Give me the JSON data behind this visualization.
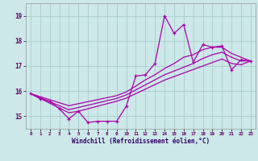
{
  "xlabel": "Windchill (Refroidissement éolien,°C)",
  "background_color": "#cce8e8",
  "grid_color": "#aacccc",
  "line_color": "#aa00aa",
  "x_values": [
    0,
    1,
    2,
    3,
    4,
    5,
    6,
    7,
    8,
    9,
    10,
    11,
    12,
    13,
    14,
    15,
    16,
    17,
    18,
    19,
    20,
    21,
    22,
    23
  ],
  "y_main": [
    15.9,
    15.7,
    15.6,
    15.3,
    14.9,
    15.2,
    14.75,
    14.8,
    14.8,
    14.8,
    15.4,
    16.6,
    16.65,
    17.1,
    19.0,
    18.3,
    18.65,
    17.15,
    17.85,
    17.75,
    17.8,
    16.85,
    17.25,
    17.2
  ],
  "y_upper": [
    15.9,
    15.78,
    15.66,
    15.54,
    15.42,
    15.5,
    15.58,
    15.66,
    15.74,
    15.82,
    15.97,
    16.2,
    16.45,
    16.65,
    16.9,
    17.1,
    17.35,
    17.45,
    17.65,
    17.75,
    17.75,
    17.5,
    17.35,
    17.2
  ],
  "y_mid": [
    15.9,
    15.74,
    15.58,
    15.42,
    15.26,
    15.35,
    15.44,
    15.53,
    15.62,
    15.71,
    15.85,
    16.05,
    16.25,
    16.45,
    16.65,
    16.8,
    16.95,
    17.1,
    17.3,
    17.45,
    17.55,
    17.35,
    17.2,
    17.2
  ],
  "y_lower": [
    15.9,
    15.71,
    15.52,
    15.33,
    15.14,
    15.2,
    15.3,
    15.4,
    15.5,
    15.6,
    15.72,
    15.9,
    16.08,
    16.26,
    16.44,
    16.58,
    16.72,
    16.86,
    17.0,
    17.14,
    17.28,
    17.1,
    17.05,
    17.2
  ],
  "xlim": [
    -0.5,
    23.5
  ],
  "ylim": [
    14.5,
    19.5
  ],
  "yticks": [
    15,
    16,
    17,
    18,
    19
  ],
  "xticks": [
    0,
    1,
    2,
    3,
    4,
    5,
    6,
    7,
    8,
    9,
    10,
    11,
    12,
    13,
    14,
    15,
    16,
    17,
    18,
    19,
    20,
    21,
    22,
    23
  ]
}
